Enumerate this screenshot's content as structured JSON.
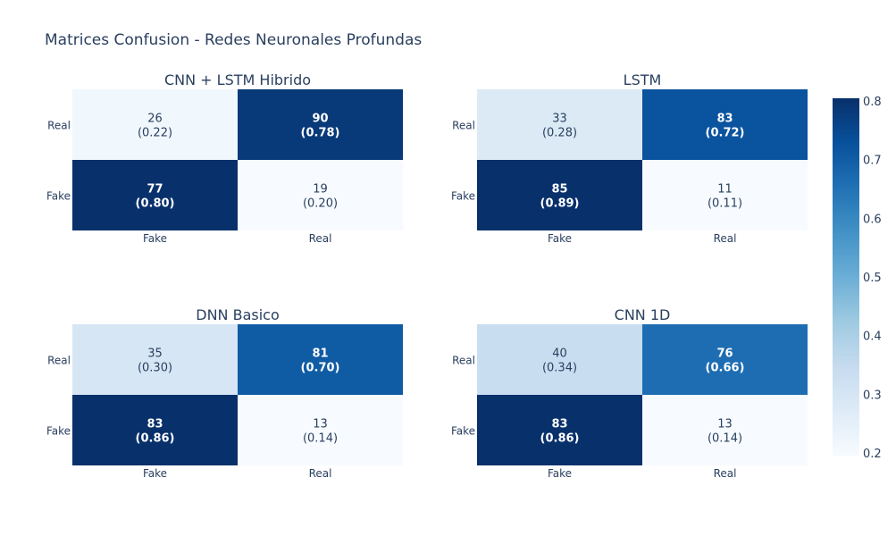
{
  "title": "Matrices Confusion - Redes Neuronales Profundas",
  "colorscale": {
    "name": "Blues",
    "min": 0.2,
    "max": 0.8,
    "ticks": [
      "0.2",
      "0.3",
      "0.4",
      "0.5",
      "0.6",
      "0.7",
      "0.8"
    ],
    "stops": [
      "#f7fbff",
      "#deebf7",
      "#c6dbef",
      "#9ecae1",
      "#6baed6",
      "#4292c6",
      "#2171b5",
      "#08519c",
      "#08306b"
    ]
  },
  "chart_data": [
    {
      "type": "heatmap",
      "title": "CNN + LSTM Hibrido",
      "x_categories": [
        "Fake",
        "Real"
      ],
      "y_categories": [
        "Fake",
        "Real"
      ],
      "counts": [
        [
          77,
          19
        ],
        [
          26,
          90
        ]
      ],
      "rates": [
        [
          0.8,
          0.2
        ],
        [
          0.22,
          0.78
        ]
      ],
      "labels": [
        [
          "(0.80)",
          "(0.20)"
        ],
        [
          "(0.22)",
          "(0.78)"
        ]
      ]
    },
    {
      "type": "heatmap",
      "title": "LSTM",
      "x_categories": [
        "Fake",
        "Real"
      ],
      "y_categories": [
        "Fake",
        "Real"
      ],
      "counts": [
        [
          85,
          11
        ],
        [
          33,
          83
        ]
      ],
      "rates": [
        [
          0.89,
          0.11
        ],
        [
          0.28,
          0.72
        ]
      ],
      "labels": [
        [
          "(0.89)",
          "(0.11)"
        ],
        [
          "(0.28)",
          "(0.72)"
        ]
      ]
    },
    {
      "type": "heatmap",
      "title": "DNN Basico",
      "x_categories": [
        "Fake",
        "Real"
      ],
      "y_categories": [
        "Fake",
        "Real"
      ],
      "counts": [
        [
          83,
          13
        ],
        [
          35,
          81
        ]
      ],
      "rates": [
        [
          0.86,
          0.14
        ],
        [
          0.3,
          0.7
        ]
      ],
      "labels": [
        [
          "(0.86)",
          "(0.14)"
        ],
        [
          "(0.30)",
          "(0.70)"
        ]
      ]
    },
    {
      "type": "heatmap",
      "title": "CNN 1D",
      "x_categories": [
        "Fake",
        "Real"
      ],
      "y_categories": [
        "Fake",
        "Real"
      ],
      "counts": [
        [
          83,
          13
        ],
        [
          40,
          76
        ]
      ],
      "rates": [
        [
          0.86,
          0.14
        ],
        [
          0.34,
          0.66
        ]
      ],
      "labels": [
        [
          "(0.86)",
          "(0.14)"
        ],
        [
          "(0.34)",
          "(0.66)"
        ]
      ]
    }
  ]
}
